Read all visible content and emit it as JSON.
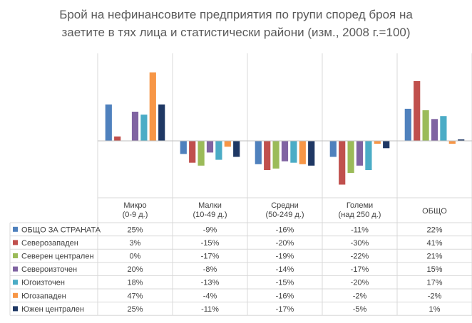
{
  "chart_data": {
    "type": "bar",
    "title_lines": [
      "Брой на нефинансовите предприятия по групи според броя на",
      "заетите в тях лица и статистически райони (изм., 2008 г.=100)"
    ],
    "categories": [
      [
        "Микро",
        "(0-9 д.)"
      ],
      [
        "Малки",
        "(10-49 д.)"
      ],
      [
        "Средни",
        "(50-249 д.)"
      ],
      [
        "Големи",
        "(над 250 д.)"
      ],
      [
        "ОБЩО"
      ]
    ],
    "ylim": [
      -35,
      50
    ],
    "grid": false,
    "legend": "data-table",
    "series": [
      {
        "name": "ОБЩО ЗА СТРАНАТА",
        "color": "#4F81BD",
        "values": [
          25,
          -9,
          -16,
          -11,
          22
        ],
        "labels": [
          "25%",
          "-9%",
          "-16%",
          "-11%",
          "22%"
        ]
      },
      {
        "name": "Северозападен",
        "color": "#C0504D",
        "values": [
          3,
          -15,
          -20,
          -30,
          41
        ],
        "labels": [
          "3%",
          "-15%",
          "-20%",
          "-30%",
          "41%"
        ]
      },
      {
        "name": "Северен централен",
        "color": "#9BBB59",
        "values": [
          0,
          -17,
          -19,
          -22,
          21
        ],
        "labels": [
          "0%",
          "-17%",
          "-19%",
          "-22%",
          "21%"
        ]
      },
      {
        "name": "Североизточен",
        "color": "#8064A2",
        "values": [
          20,
          -8,
          -14,
          -17,
          15
        ],
        "labels": [
          "20%",
          "-8%",
          "-14%",
          "-17%",
          "15%"
        ]
      },
      {
        "name": "Югоизточен",
        "color": "#4BACC6",
        "values": [
          18,
          -13,
          -15,
          -20,
          17
        ],
        "labels": [
          "18%",
          "-13%",
          "-15%",
          "-20%",
          "17%"
        ]
      },
      {
        "name": "Югозападен",
        "color": "#F79646",
        "values": [
          47,
          -4,
          -16,
          -2,
          -2
        ],
        "labels": [
          "47%",
          "-4%",
          "-16%",
          "-2%",
          "-2%"
        ]
      },
      {
        "name": "Южен централен",
        "color": "#1F3864",
        "values": [
          25,
          -11,
          -17,
          -5,
          1
        ],
        "labels": [
          "25%",
          "-11%",
          "-17%",
          "-5%",
          "1%"
        ]
      }
    ]
  }
}
